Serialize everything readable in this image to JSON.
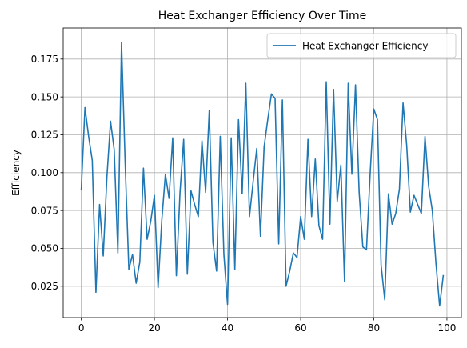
{
  "chart_data": {
    "type": "line",
    "title": "Heat Exchanger Efficiency Over Time",
    "xlabel": "",
    "ylabel": "Efficiency",
    "xlim": [
      -4.95,
      103.95
    ],
    "ylim": [
      0.0043,
      0.1955
    ],
    "xticks": [
      0,
      20,
      40,
      60,
      80,
      100
    ],
    "xtick_labels": [
      "0",
      "20",
      "40",
      "60",
      "80",
      "100"
    ],
    "yticks": [
      0.025,
      0.05,
      0.075,
      0.1,
      0.125,
      0.15,
      0.175
    ],
    "ytick_labels": [
      "0.025",
      "0.050",
      "0.075",
      "0.100",
      "0.125",
      "0.150",
      "0.175"
    ],
    "grid": true,
    "legend_position": "upper right",
    "series": [
      {
        "name": "Heat Exchanger Efficiency",
        "color": "#1f77b4",
        "x": [
          0,
          1,
          2,
          3,
          4,
          5,
          6,
          7,
          8,
          9,
          10,
          11,
          12,
          13,
          14,
          15,
          16,
          17,
          18,
          19,
          20,
          21,
          22,
          23,
          24,
          25,
          26,
          27,
          28,
          29,
          30,
          31,
          32,
          33,
          34,
          35,
          36,
          37,
          38,
          39,
          40,
          41,
          42,
          43,
          44,
          45,
          46,
          47,
          48,
          49,
          50,
          51,
          52,
          53,
          54,
          55,
          56,
          57,
          58,
          59,
          60,
          61,
          62,
          63,
          64,
          65,
          66,
          67,
          68,
          69,
          70,
          71,
          72,
          73,
          74,
          75,
          76,
          77,
          78,
          79,
          80,
          81,
          82,
          83,
          84,
          85,
          86,
          87,
          88,
          89,
          90,
          91,
          92,
          93,
          94,
          95,
          96,
          97,
          98,
          99
        ],
        "values": [
          0.089,
          0.143,
          0.124,
          0.108,
          0.021,
          0.079,
          0.045,
          0.097,
          0.134,
          0.115,
          0.047,
          0.186,
          0.106,
          0.036,
          0.046,
          0.027,
          0.041,
          0.103,
          0.056,
          0.068,
          0.085,
          0.024,
          0.068,
          0.099,
          0.083,
          0.123,
          0.032,
          0.087,
          0.122,
          0.033,
          0.088,
          0.079,
          0.071,
          0.121,
          0.087,
          0.141,
          0.054,
          0.035,
          0.124,
          0.046,
          0.013,
          0.123,
          0.036,
          0.135,
          0.086,
          0.159,
          0.071,
          0.094,
          0.116,
          0.058,
          0.117,
          0.135,
          0.152,
          0.149,
          0.053,
          0.148,
          0.025,
          0.035,
          0.047,
          0.044,
          0.071,
          0.056,
          0.122,
          0.071,
          0.109,
          0.065,
          0.056,
          0.16,
          0.066,
          0.155,
          0.081,
          0.105,
          0.028,
          0.159,
          0.099,
          0.158,
          0.087,
          0.051,
          0.049,
          0.099,
          0.142,
          0.135,
          0.039,
          0.016,
          0.086,
          0.066,
          0.073,
          0.089,
          0.146,
          0.118,
          0.074,
          0.085,
          0.079,
          0.073,
          0.124,
          0.091,
          0.075,
          0.04,
          0.012,
          0.032
        ]
      }
    ]
  }
}
